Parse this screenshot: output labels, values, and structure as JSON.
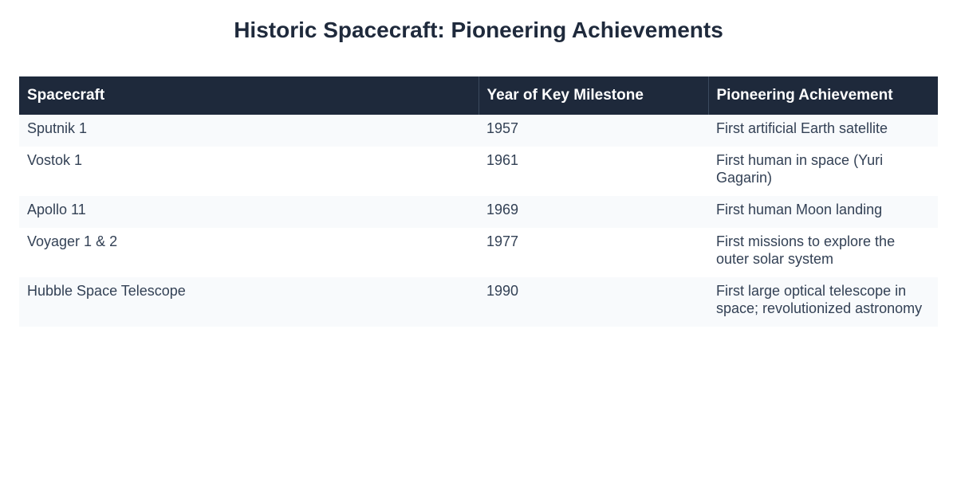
{
  "header": {
    "title": "Historic Spacecraft: Pioneering Achievements"
  },
  "table": {
    "columns": [
      "Spacecraft",
      "Year of Key Milestone",
      "Pioneering Achievement"
    ],
    "rows": [
      [
        "Sputnik 1",
        "1957",
        "First artificial Earth satellite"
      ],
      [
        "Vostok 1",
        "1961",
        "First human in space (Yuri Gagarin)"
      ],
      [
        "Apollo 11",
        "1969",
        "First human Moon landing"
      ],
      [
        "Voyager 1 & 2",
        "1977",
        "First missions to explore the outer solar system"
      ],
      [
        "Hubble Space Telescope",
        "1990",
        "First large optical telescope in space; revolutionized astronomy"
      ]
    ]
  }
}
